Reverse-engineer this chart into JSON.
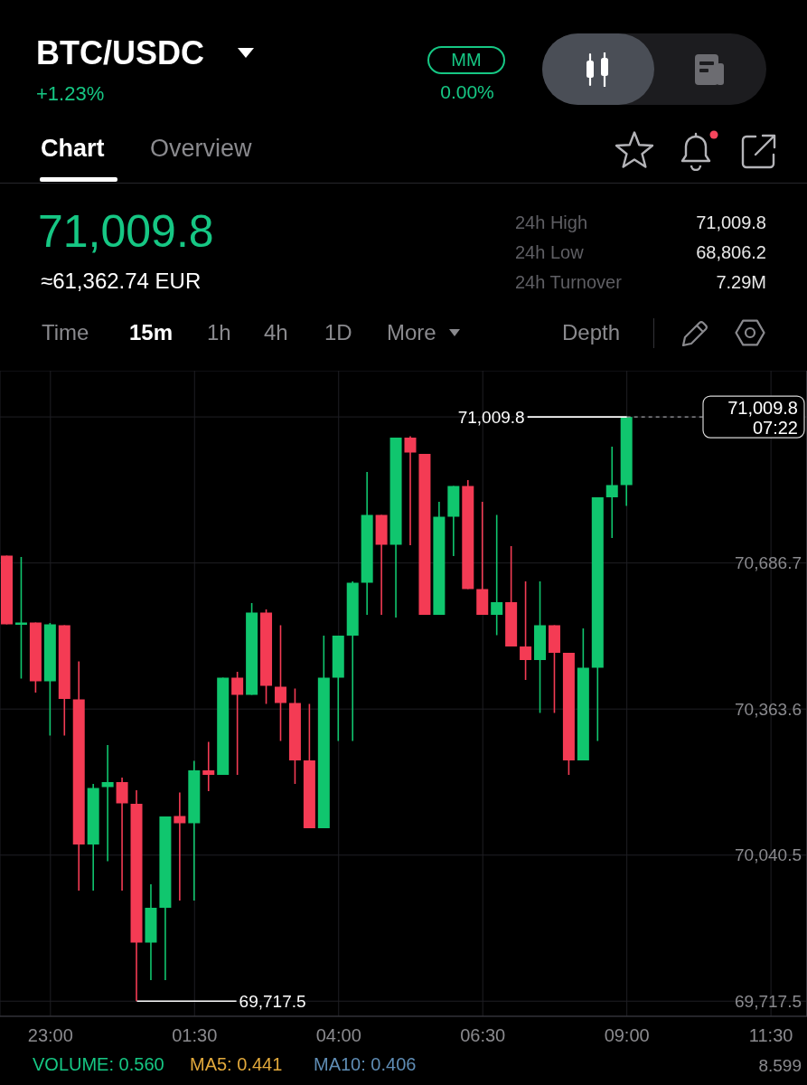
{
  "chart_data": {
    "type": "candlestick",
    "title": "BTC/USDC",
    "subtitle": "+1.23%",
    "categories": [
      null,
      null,
      null,
      "23:00",
      null,
      null,
      null,
      null,
      null,
      null,
      null,
      null,
      null,
      "01:30",
      null,
      null,
      null,
      null,
      null,
      null,
      null,
      null,
      null,
      "04:00",
      null,
      null,
      null,
      null,
      null,
      null,
      null,
      null,
      null,
      "06:30",
      null,
      null,
      null,
      null,
      null,
      null,
      null,
      null,
      null,
      "09:00",
      null,
      null,
      null,
      null,
      null,
      null,
      null,
      null,
      null,
      "11:30",
      null,
      null
    ],
    "ohlc": [
      [
        70703,
        70703,
        70551,
        70551
      ],
      [
        70550,
        70700,
        70431,
        70555
      ],
      [
        70555,
        70555,
        70400,
        70425
      ],
      [
        70425,
        70554,
        70305,
        70551
      ],
      [
        70549,
        70549,
        70305,
        70386
      ],
      [
        70385,
        70469,
        69962,
        70064
      ],
      [
        70064,
        70198,
        69962,
        70189
      ],
      [
        70191,
        70284,
        70027,
        70202
      ],
      [
        70202,
        70212,
        69962,
        70155
      ],
      [
        70154,
        70184,
        69717.5,
        69847
      ],
      [
        69847,
        69976,
        69764,
        69924
      ],
      [
        69924,
        70126,
        69764,
        70126
      ],
      [
        70127,
        70179,
        69940,
        70111
      ],
      [
        70111,
        70249,
        69940,
        70228
      ],
      [
        70228,
        70291,
        70182,
        70218
      ],
      [
        70218,
        70433,
        70218,
        70433
      ],
      [
        70433,
        70446,
        70218,
        70395
      ],
      [
        70395,
        70598,
        70395,
        70577
      ],
      [
        70577,
        70584,
        70375,
        70415
      ],
      [
        70413,
        70549,
        70293,
        70377
      ],
      [
        70377,
        70409,
        70198,
        70250
      ],
      [
        70250,
        70375,
        70100,
        70100
      ],
      [
        70100,
        70526,
        70100,
        70433
      ],
      [
        70433,
        70526,
        70293,
        70526
      ],
      [
        70526,
        70646,
        70293,
        70643
      ],
      [
        70643,
        70888,
        70572,
        70793
      ],
      [
        70793,
        70793,
        70572,
        70727
      ],
      [
        70727,
        70964,
        70566,
        70964
      ],
      [
        70964,
        70967,
        70726,
        70931
      ],
      [
        70928,
        70928,
        70572,
        70572
      ],
      [
        70572,
        70822,
        70572,
        70789
      ],
      [
        70789,
        70857,
        70702,
        70857
      ],
      [
        70857,
        70870,
        70629,
        70629
      ],
      [
        70629,
        70822,
        70572,
        70572
      ],
      [
        70572,
        70793,
        70527,
        70600
      ],
      [
        70600,
        70724,
        70502,
        70502
      ],
      [
        70502,
        70646,
        70428,
        70472
      ],
      [
        70472,
        70646,
        70355,
        70549
      ],
      [
        70549,
        70549,
        70355,
        70488
      ],
      [
        70488,
        70488,
        70218,
        70250
      ],
      [
        70250,
        70542,
        70250,
        70455
      ],
      [
        70455,
        70832,
        70293,
        70832
      ],
      [
        70832,
        70944,
        70742,
        70859
      ],
      [
        70859,
        71009.8,
        70813,
        71009.8
      ],
      null,
      null,
      null,
      null,
      null,
      null,
      null,
      null,
      null,
      null,
      null,
      null
    ],
    "colors": [
      "#f43b54",
      "#10c66e",
      "#f43b54",
      "#10c66e",
      "#f43b54",
      "#f43b54",
      "#10c66e",
      "#10c66e",
      "#f43b54",
      "#f43b54",
      "#10c66e",
      "#10c66e",
      "#f43b54",
      "#10c66e",
      "#f43b54",
      "#10c66e",
      "#f43b54",
      "#10c66e",
      "#f43b54",
      "#f43b54",
      "#f43b54",
      "#f43b54",
      "#10c66e",
      "#10c66e",
      "#10c66e",
      "#10c66e",
      "#f43b54",
      "#10c66e",
      "#f43b54",
      "#f43b54",
      "#10c66e",
      "#10c66e",
      "#f43b54",
      "#f43b54",
      "#10c66e",
      "#f43b54",
      "#f43b54",
      "#10c66e",
      "#f43b54",
      "#f43b54",
      "#10c66e",
      "#10c66e",
      "#10c66e",
      "#10c66e",
      null,
      null,
      null,
      null,
      null,
      null,
      null,
      null,
      null,
      null,
      null,
      null
    ],
    "ylim": [
      69684,
      71112
    ],
    "yticks": [
      {
        "value": 69717.5,
        "label": "69,717.5"
      },
      {
        "value": 70040.5,
        "label": "70,040.5"
      },
      {
        "value": 70363.6,
        "label": "70,363.6"
      },
      {
        "value": 70686.7,
        "label": "70,686.7"
      },
      {
        "value": 71009.8,
        "label": null
      }
    ],
    "grid": true,
    "ref_lines": [
      {
        "axis": "y",
        "value": 71009.8,
        "label": "71,009.8",
        "color": "#9a9a9e",
        "line_style": "dashed"
      },
      {
        "axis": "y",
        "value": 69717.5,
        "label": "69,717.5",
        "color": "#ffffff",
        "line_style": "solid"
      }
    ],
    "annotations": [
      "MM",
      "0.00%",
      "Chart",
      "Overview",
      "71,009.8",
      "≈61,362.74 EUR",
      "24h High",
      "71,009.8",
      "24h Low",
      "68,806.2",
      "24h Turnover",
      "7.29M",
      "Time",
      "15m",
      "1h",
      "4h",
      "1D",
      "More",
      "Depth",
      "07:22",
      "VOLUME: 0.560",
      "MA5: 0.441",
      "MA10: 0.406",
      "8.599",
      {
        "text": "71,009.8",
        "x": "09:00",
        "y": 71009.8
      }
    ]
  }
}
